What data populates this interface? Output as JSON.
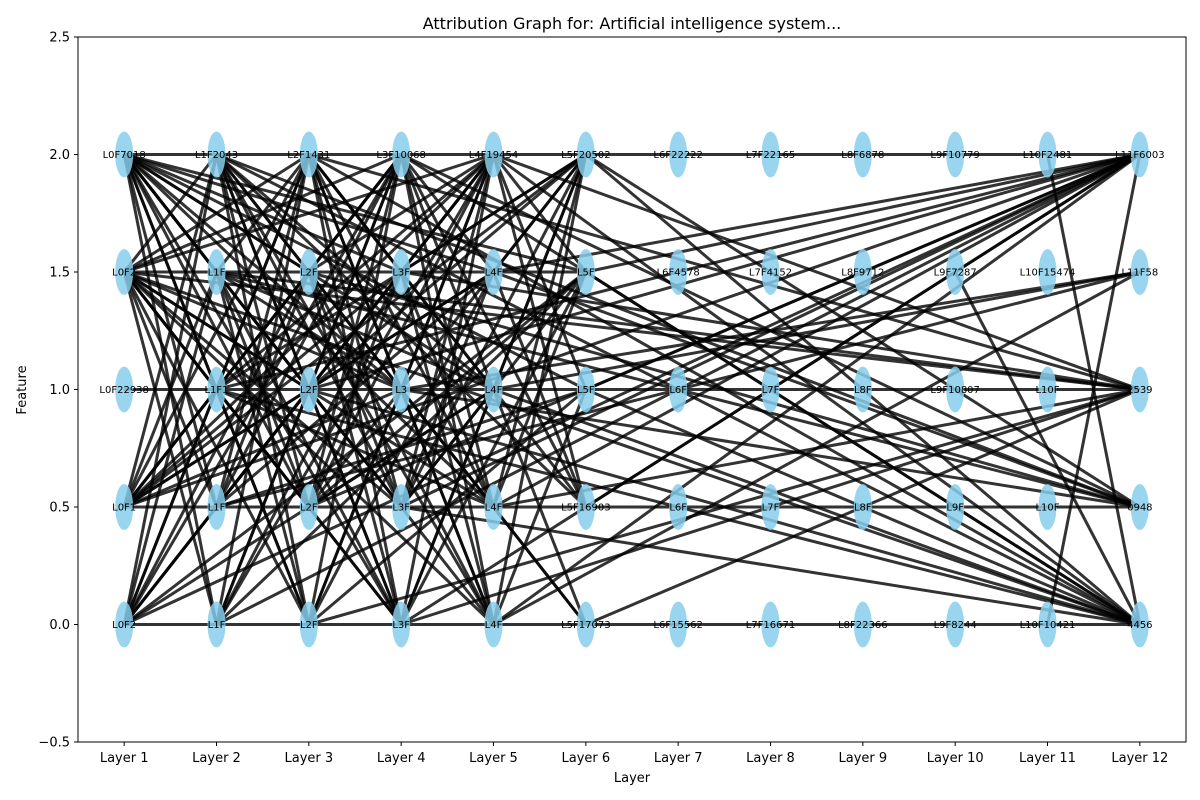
{
  "chart_data": {
    "type": "scatter",
    "title": "Attribution Graph for: Artificial intelligence system...",
    "xlabel": "Layer",
    "ylabel": "Feature",
    "ylim": [
      -0.5,
      2.5
    ],
    "xlim": [
      0.5,
      12.5
    ],
    "x_tick_labels": [
      "Layer 1",
      "Layer 2",
      "Layer 3",
      "Layer 4",
      "Layer 5",
      "Layer 6",
      "Layer 7",
      "Layer 8",
      "Layer 9",
      "Layer 10",
      "Layer 11",
      "Layer 12"
    ],
    "y_ticks": [
      -0.5,
      0.0,
      0.5,
      1.0,
      1.5,
      2.0,
      2.5
    ],
    "y_tick_labels": [
      "−0.5",
      "0.0",
      "0.5",
      "1.0",
      "1.5",
      "2.0",
      "2.5"
    ],
    "grid": false,
    "node_color": "#87ceeb",
    "edge_color": "#000000",
    "nodes": [
      {
        "layer": 1,
        "y": 2.0,
        "label": "L0F7018"
      },
      {
        "layer": 1,
        "y": 1.5,
        "label": "L0F2"
      },
      {
        "layer": 1,
        "y": 1.0,
        "label": "L0F22938"
      },
      {
        "layer": 1,
        "y": 0.5,
        "label": "L0F1"
      },
      {
        "layer": 1,
        "y": 0.0,
        "label": "L0F2"
      },
      {
        "layer": 2,
        "y": 2.0,
        "label": "L1F2043"
      },
      {
        "layer": 2,
        "y": 1.5,
        "label": "L1F"
      },
      {
        "layer": 2,
        "y": 1.0,
        "label": "L1F1"
      },
      {
        "layer": 2,
        "y": 0.5,
        "label": "L1F"
      },
      {
        "layer": 2,
        "y": 0.0,
        "label": "L1F"
      },
      {
        "layer": 3,
        "y": 2.0,
        "label": "L2F1431"
      },
      {
        "layer": 3,
        "y": 1.5,
        "label": "L2F"
      },
      {
        "layer": 3,
        "y": 1.0,
        "label": "L2F"
      },
      {
        "layer": 3,
        "y": 0.5,
        "label": "L2F"
      },
      {
        "layer": 3,
        "y": 0.0,
        "label": "L2F"
      },
      {
        "layer": 4,
        "y": 2.0,
        "label": "L3F10068"
      },
      {
        "layer": 4,
        "y": 1.5,
        "label": "L3F"
      },
      {
        "layer": 4,
        "y": 1.0,
        "label": "L3"
      },
      {
        "layer": 4,
        "y": 0.5,
        "label": "L3F"
      },
      {
        "layer": 4,
        "y": 0.0,
        "label": "L3F"
      },
      {
        "layer": 5,
        "y": 2.0,
        "label": "L4F19454"
      },
      {
        "layer": 5,
        "y": 1.5,
        "label": "L4F"
      },
      {
        "layer": 5,
        "y": 1.0,
        "label": "L4F"
      },
      {
        "layer": 5,
        "y": 0.5,
        "label": "L4F"
      },
      {
        "layer": 5,
        "y": 0.0,
        "label": "L4F"
      },
      {
        "layer": 6,
        "y": 2.0,
        "label": "L5F20502"
      },
      {
        "layer": 6,
        "y": 1.5,
        "label": "L5F"
      },
      {
        "layer": 6,
        "y": 1.0,
        "label": "L5F"
      },
      {
        "layer": 6,
        "y": 0.5,
        "label": "L5F16903"
      },
      {
        "layer": 6,
        "y": 0.0,
        "label": "L5F17073"
      },
      {
        "layer": 7,
        "y": 2.0,
        "label": "L6F22222"
      },
      {
        "layer": 7,
        "y": 1.5,
        "label": "L6F4578"
      },
      {
        "layer": 7,
        "y": 1.0,
        "label": "L6F"
      },
      {
        "layer": 7,
        "y": 0.5,
        "label": "L6F"
      },
      {
        "layer": 7,
        "y": 0.0,
        "label": "L6F15562"
      },
      {
        "layer": 8,
        "y": 2.0,
        "label": "L7F22165"
      },
      {
        "layer": 8,
        "y": 1.5,
        "label": "L7F4152"
      },
      {
        "layer": 8,
        "y": 1.0,
        "label": "L7F"
      },
      {
        "layer": 8,
        "y": 0.5,
        "label": "L7F"
      },
      {
        "layer": 8,
        "y": 0.0,
        "label": "L7F16671"
      },
      {
        "layer": 9,
        "y": 2.0,
        "label": "L8F6878"
      },
      {
        "layer": 9,
        "y": 1.5,
        "label": "L8F9712"
      },
      {
        "layer": 9,
        "y": 1.0,
        "label": "L8F"
      },
      {
        "layer": 9,
        "y": 0.5,
        "label": "L8F"
      },
      {
        "layer": 9,
        "y": 0.0,
        "label": "L8F22366"
      },
      {
        "layer": 10,
        "y": 2.0,
        "label": "L9F10779"
      },
      {
        "layer": 10,
        "y": 1.5,
        "label": "L9F7287"
      },
      {
        "layer": 10,
        "y": 1.0,
        "label": "L9F10807"
      },
      {
        "layer": 10,
        "y": 0.5,
        "label": "L9F"
      },
      {
        "layer": 10,
        "y": 0.0,
        "label": "L9F8244"
      },
      {
        "layer": 11,
        "y": 2.0,
        "label": "L10F2481"
      },
      {
        "layer": 11,
        "y": 1.5,
        "label": "L10F15474"
      },
      {
        "layer": 11,
        "y": 1.0,
        "label": "L10F"
      },
      {
        "layer": 11,
        "y": 0.5,
        "label": "L10F"
      },
      {
        "layer": 11,
        "y": 0.0,
        "label": "L10F10421"
      },
      {
        "layer": 12,
        "y": 2.0,
        "label": "L11F6003"
      },
      {
        "layer": 12,
        "y": 1.5,
        "label": "L11F58"
      },
      {
        "layer": 12,
        "y": 1.0,
        "label": "2539"
      },
      {
        "layer": 12,
        "y": 0.5,
        "label": "0948"
      },
      {
        "layer": 12,
        "y": 0.0,
        "label": "4456"
      }
    ],
    "edges": [
      [
        1,
        2.0,
        12,
        2.0
      ],
      [
        1,
        1.0,
        12,
        1.0
      ],
      [
        1,
        0.5,
        12,
        0.5
      ],
      [
        1,
        0.0,
        12,
        0.0
      ],
      [
        1,
        1.5,
        6,
        1.5
      ],
      [
        1,
        2.0,
        2,
        1.5
      ],
      [
        1,
        2.0,
        2,
        1.0
      ],
      [
        1,
        2.0,
        2,
        0.5
      ],
      [
        1,
        2.0,
        2,
        0.0
      ],
      [
        1,
        2.0,
        3,
        1.5
      ],
      [
        1,
        2.0,
        3,
        1.0
      ],
      [
        1,
        2.0,
        3,
        0.5
      ],
      [
        1,
        2.0,
        3,
        0.0
      ],
      [
        1,
        2.0,
        4,
        1.5
      ],
      [
        1,
        2.0,
        4,
        1.0
      ],
      [
        1,
        2.0,
        4,
        0.5
      ],
      [
        1,
        2.0,
        4,
        0.0
      ],
      [
        1,
        2.0,
        5,
        1.5
      ],
      [
        1,
        2.0,
        5,
        1.0
      ],
      [
        1,
        2.0,
        5,
        0.5
      ],
      [
        1,
        2.0,
        5,
        0.0
      ],
      [
        1,
        2.0,
        6,
        1.5
      ],
      [
        1,
        2.0,
        6,
        1.0
      ],
      [
        1,
        1.5,
        2,
        2.0
      ],
      [
        1,
        1.5,
        2,
        1.0
      ],
      [
        1,
        1.5,
        2,
        0.5
      ],
      [
        1,
        1.5,
        2,
        0.0
      ],
      [
        1,
        1.5,
        3,
        2.0
      ],
      [
        1,
        1.5,
        3,
        1.0
      ],
      [
        1,
        1.5,
        3,
        0.5
      ],
      [
        1,
        1.5,
        3,
        0.0
      ],
      [
        1,
        1.5,
        4,
        2.0
      ],
      [
        1,
        1.5,
        4,
        1.0
      ],
      [
        1,
        1.5,
        4,
        0.5
      ],
      [
        1,
        1.5,
        4,
        0.0
      ],
      [
        1,
        1.5,
        5,
        2.0
      ],
      [
        1,
        1.5,
        5,
        0.5
      ],
      [
        1,
        1.5,
        5,
        0.0
      ],
      [
        1,
        1.5,
        12,
        1.0
      ],
      [
        1,
        1.5,
        12,
        0.0
      ],
      [
        1,
        0.5,
        2,
        2.0
      ],
      [
        1,
        0.5,
        2,
        1.5
      ],
      [
        1,
        0.5,
        2,
        1.0
      ],
      [
        1,
        0.5,
        3,
        2.0
      ],
      [
        1,
        0.5,
        3,
        1.5
      ],
      [
        1,
        0.5,
        3,
        1.0
      ],
      [
        1,
        0.5,
        4,
        2.0
      ],
      [
        1,
        0.5,
        4,
        1.5
      ],
      [
        1,
        0.5,
        4,
        1.0
      ],
      [
        1,
        0.5,
        5,
        2.0
      ],
      [
        1,
        0.5,
        5,
        1.5
      ],
      [
        1,
        0.5,
        6,
        2.0
      ],
      [
        1,
        0.5,
        12,
        2.0
      ],
      [
        1,
        0.0,
        2,
        2.0
      ],
      [
        1,
        0.0,
        2,
        1.5
      ],
      [
        1,
        0.0,
        2,
        1.0
      ],
      [
        1,
        0.0,
        3,
        2.0
      ],
      [
        1,
        0.0,
        3,
        1.5
      ],
      [
        1,
        0.0,
        3,
        1.0
      ],
      [
        1,
        0.0,
        4,
        2.0
      ],
      [
        1,
        0.0,
        4,
        1.5
      ],
      [
        1,
        0.0,
        5,
        2.0
      ],
      [
        1,
        0.0,
        5,
        1.0
      ],
      [
        1,
        0.0,
        6,
        1.5
      ],
      [
        1,
        0.0,
        12,
        2.0
      ],
      [
        2,
        2.0,
        3,
        1.5
      ],
      [
        2,
        2.0,
        3,
        1.0
      ],
      [
        2,
        2.0,
        3,
        0.5
      ],
      [
        2,
        2.0,
        3,
        0.0
      ],
      [
        2,
        2.0,
        4,
        1.0
      ],
      [
        2,
        2.0,
        4,
        0.5
      ],
      [
        2,
        2.0,
        4,
        0.0
      ],
      [
        2,
        2.0,
        5,
        1.0
      ],
      [
        2,
        2.0,
        5,
        0.0
      ],
      [
        2,
        2.0,
        6,
        0.5
      ],
      [
        2,
        2.0,
        12,
        0.5
      ],
      [
        2,
        2.0,
        12,
        0.0
      ],
      [
        2,
        1.5,
        3,
        2.0
      ],
      [
        2,
        1.5,
        3,
        0.5
      ],
      [
        2,
        1.5,
        3,
        0.0
      ],
      [
        2,
        1.5,
        4,
        1.0
      ],
      [
        2,
        1.5,
        4,
        0.0
      ],
      [
        2,
        1.5,
        5,
        1.0
      ],
      [
        2,
        1.5,
        12,
        1.0
      ],
      [
        2,
        1.5,
        12,
        0.5
      ],
      [
        2,
        1.0,
        3,
        2.0
      ],
      [
        2,
        1.0,
        3,
        1.5
      ],
      [
        2,
        1.0,
        3,
        0.5
      ],
      [
        2,
        1.0,
        3,
        0.0
      ],
      [
        2,
        1.0,
        4,
        2.0
      ],
      [
        2,
        1.0,
        4,
        0.0
      ],
      [
        2,
        1.0,
        5,
        2.0
      ],
      [
        2,
        1.0,
        5,
        0.5
      ],
      [
        2,
        1.0,
        6,
        2.0
      ],
      [
        2,
        1.0,
        12,
        2.0
      ],
      [
        2,
        1.0,
        12,
        0.0
      ],
      [
        2,
        0.5,
        3,
        2.0
      ],
      [
        2,
        0.5,
        3,
        1.5
      ],
      [
        2,
        0.5,
        3,
        1.0
      ],
      [
        2,
        0.5,
        4,
        2.0
      ],
      [
        2,
        0.5,
        4,
        1.5
      ],
      [
        2,
        0.5,
        5,
        1.5
      ],
      [
        2,
        0.5,
        6,
        1.0
      ],
      [
        2,
        0.5,
        12,
        1.5
      ],
      [
        2,
        0.0,
        3,
        2.0
      ],
      [
        2,
        0.0,
        3,
        1.0
      ],
      [
        2,
        0.0,
        4,
        1.5
      ],
      [
        2,
        0.0,
        4,
        2.0
      ],
      [
        2,
        0.0,
        5,
        2.0
      ],
      [
        2,
        0.0,
        6,
        1.5
      ],
      [
        2,
        0.0,
        12,
        2.0
      ],
      [
        3,
        2.0,
        4,
        1.5
      ],
      [
        3,
        2.0,
        4,
        1.0
      ],
      [
        3,
        2.0,
        4,
        0.5
      ],
      [
        3,
        2.0,
        4,
        0.0
      ],
      [
        3,
        2.0,
        5,
        1.0
      ],
      [
        3,
        2.0,
        5,
        0.5
      ],
      [
        3,
        2.0,
        5,
        0.0
      ],
      [
        3,
        2.0,
        6,
        0.5
      ],
      [
        3,
        2.0,
        12,
        1.0
      ],
      [
        3,
        2.0,
        12,
        0.0
      ],
      [
        3,
        1.5,
        4,
        2.0
      ],
      [
        3,
        1.5,
        4,
        0.5
      ],
      [
        3,
        1.5,
        4,
        0.0
      ],
      [
        3,
        1.5,
        5,
        2.0
      ],
      [
        3,
        1.5,
        5,
        0.0
      ],
      [
        3,
        1.5,
        6,
        0.0
      ],
      [
        3,
        1.5,
        12,
        0.5
      ],
      [
        3,
        1.0,
        4,
        2.0
      ],
      [
        3,
        1.0,
        4,
        0.5
      ],
      [
        3,
        1.0,
        4,
        0.0
      ],
      [
        3,
        1.0,
        5,
        2.0
      ],
      [
        3,
        1.0,
        5,
        1.5
      ],
      [
        3,
        1.0,
        6,
        2.0
      ],
      [
        3,
        1.0,
        12,
        2.0
      ],
      [
        3,
        1.0,
        12,
        0.0
      ],
      [
        3,
        0.5,
        4,
        2.0
      ],
      [
        3,
        0.5,
        4,
        1.5
      ],
      [
        3,
        0.5,
        4,
        1.0
      ],
      [
        3,
        0.5,
        5,
        2.0
      ],
      [
        3,
        0.5,
        5,
        1.0
      ],
      [
        3,
        0.5,
        6,
        1.5
      ],
      [
        3,
        0.5,
        12,
        2.0
      ],
      [
        3,
        0.0,
        4,
        2.0
      ],
      [
        3,
        0.0,
        4,
        1.0
      ],
      [
        3,
        0.0,
        5,
        2.0
      ],
      [
        3,
        0.0,
        5,
        1.5
      ],
      [
        3,
        0.0,
        6,
        1.0
      ],
      [
        3,
        0.0,
        12,
        1.0
      ],
      [
        4,
        2.0,
        5,
        1.5
      ],
      [
        4,
        2.0,
        5,
        1.0
      ],
      [
        4,
        2.0,
        5,
        0.5
      ],
      [
        4,
        2.0,
        5,
        0.0
      ],
      [
        4,
        2.0,
        6,
        0.5
      ],
      [
        4,
        2.0,
        12,
        0.5
      ],
      [
        4,
        2.0,
        12,
        0.0
      ],
      [
        4,
        1.5,
        5,
        2.0
      ],
      [
        4,
        1.5,
        5,
        0.5
      ],
      [
        4,
        1.5,
        5,
        0.0
      ],
      [
        4,
        1.5,
        6,
        2.0
      ],
      [
        4,
        1.5,
        12,
        1.0
      ],
      [
        4,
        1.0,
        5,
        2.0
      ],
      [
        4,
        1.0,
        5,
        0.5
      ],
      [
        4,
        1.0,
        5,
        0.0
      ],
      [
        4,
        1.0,
        6,
        2.0
      ],
      [
        4,
        1.0,
        6,
        0.0
      ],
      [
        4,
        1.0,
        12,
        1.5
      ],
      [
        4,
        1.0,
        12,
        0.5
      ],
      [
        4,
        0.5,
        5,
        2.0
      ],
      [
        4,
        0.5,
        5,
        1.5
      ],
      [
        4,
        0.5,
        5,
        1.0
      ],
      [
        4,
        0.5,
        6,
        2.0
      ],
      [
        4,
        0.5,
        6,
        1.5
      ],
      [
        4,
        0.5,
        12,
        2.0
      ],
      [
        4,
        0.5,
        12,
        0.0
      ],
      [
        4,
        0.0,
        5,
        2.0
      ],
      [
        4,
        0.0,
        5,
        1.0
      ],
      [
        4,
        0.0,
        6,
        2.0
      ],
      [
        4,
        0.0,
        6,
        1.5
      ],
      [
        4,
        0.0,
        12,
        2.0
      ],
      [
        4,
        0.0,
        12,
        1.0
      ],
      [
        5,
        2.0,
        6,
        1.5
      ],
      [
        5,
        2.0,
        6,
        1.0
      ],
      [
        5,
        2.0,
        6,
        0.5
      ],
      [
        5,
        2.0,
        12,
        1.0
      ],
      [
        5,
        2.0,
        12,
        0.0
      ],
      [
        5,
        1.5,
        6,
        2.0
      ],
      [
        5,
        1.5,
        6,
        0.5
      ],
      [
        5,
        1.5,
        12,
        2.0
      ],
      [
        5,
        1.5,
        12,
        0.5
      ],
      [
        5,
        1.0,
        6,
        2.0
      ],
      [
        5,
        1.0,
        6,
        0.0
      ],
      [
        5,
        1.0,
        12,
        1.5
      ],
      [
        5,
        1.0,
        12,
        0.0
      ],
      [
        5,
        0.5,
        6,
        2.0
      ],
      [
        5,
        0.5,
        6,
        1.5
      ],
      [
        5,
        0.5,
        12,
        2.0
      ],
      [
        5,
        0.5,
        12,
        1.0
      ],
      [
        5,
        0.0,
        6,
        2.0
      ],
      [
        5,
        0.0,
        6,
        1.0
      ],
      [
        5,
        0.0,
        12,
        2.0
      ],
      [
        5,
        0.0,
        12,
        1.5
      ],
      [
        6,
        2.0,
        12,
        0.5
      ],
      [
        6,
        2.0,
        12,
        0.0
      ],
      [
        6,
        1.5,
        12,
        2.0
      ],
      [
        6,
        1.5,
        12,
        0.0
      ],
      [
        6,
        1.0,
        12,
        2.0
      ],
      [
        6,
        1.0,
        12,
        0.0
      ],
      [
        6,
        0.5,
        12,
        2.0
      ],
      [
        6,
        0.0,
        12,
        1.0
      ],
      [
        10,
        1.5,
        12,
        0.0
      ],
      [
        11,
        2.0,
        12,
        0.0
      ],
      [
        11,
        0.0,
        12,
        2.0
      ]
    ]
  }
}
